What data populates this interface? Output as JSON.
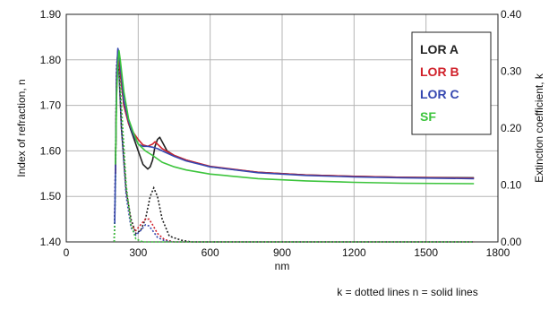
{
  "chart_data": {
    "type": "line",
    "xlabel": "nm",
    "ylabel_left": "Index of refraction, n",
    "ylabel_right": "Extinction coefficient, k",
    "xlim": [
      0,
      1800
    ],
    "ylim_left": [
      1.4,
      1.9
    ],
    "ylim_right": [
      0.0,
      0.4
    ],
    "x_ticks": [
      "0",
      "300",
      "600",
      "900",
      "1200",
      "1500",
      "1800"
    ],
    "y_left_ticks": [
      "1.40",
      "1.50",
      "1.60",
      "1.70",
      "1.80",
      "1.90"
    ],
    "y_right_ticks": [
      "0.00",
      "0.10",
      "0.20",
      "0.30",
      "0.40"
    ],
    "grid": true,
    "legend_position": "top-right",
    "footnote": "k = dotted lines  n = solid lines",
    "series": [
      {
        "name": "LOR A",
        "color": "#222222",
        "n": [
          [
            205,
            1.55
          ],
          [
            210,
            1.75
          ],
          [
            215,
            1.81
          ],
          [
            220,
            1.8
          ],
          [
            240,
            1.7
          ],
          [
            260,
            1.66
          ],
          [
            280,
            1.63
          ],
          [
            300,
            1.6
          ],
          [
            320,
            1.57
          ],
          [
            340,
            1.56
          ],
          [
            350,
            1.565
          ],
          [
            360,
            1.58
          ],
          [
            370,
            1.61
          ],
          [
            380,
            1.625
          ],
          [
            390,
            1.63
          ],
          [
            400,
            1.62
          ],
          [
            420,
            1.6
          ],
          [
            450,
            1.59
          ],
          [
            500,
            1.58
          ],
          [
            600,
            1.565
          ],
          [
            800,
            1.553
          ],
          [
            1000,
            1.547
          ],
          [
            1200,
            1.544
          ],
          [
            1400,
            1.542
          ],
          [
            1700,
            1.541
          ]
        ],
        "k": [
          [
            200,
            0.0
          ],
          [
            205,
            0.12
          ],
          [
            210,
            0.3
          ],
          [
            215,
            0.325
          ],
          [
            220,
            0.3
          ],
          [
            230,
            0.2
          ],
          [
            250,
            0.09
          ],
          [
            270,
            0.04
          ],
          [
            290,
            0.015
          ],
          [
            310,
            0.02
          ],
          [
            330,
            0.04
          ],
          [
            350,
            0.08
          ],
          [
            365,
            0.095
          ],
          [
            380,
            0.08
          ],
          [
            400,
            0.04
          ],
          [
            430,
            0.01
          ],
          [
            480,
            0.003
          ],
          [
            520,
            0.0
          ],
          [
            1700,
            0.0
          ]
        ]
      },
      {
        "name": "LOR B",
        "color": "#d0202a",
        "n": [
          [
            205,
            1.55
          ],
          [
            210,
            1.77
          ],
          [
            215,
            1.82
          ],
          [
            220,
            1.8
          ],
          [
            240,
            1.7
          ],
          [
            260,
            1.66
          ],
          [
            280,
            1.64
          ],
          [
            300,
            1.625
          ],
          [
            320,
            1.613
          ],
          [
            340,
            1.61
          ],
          [
            360,
            1.615
          ],
          [
            370,
            1.62
          ],
          [
            380,
            1.615
          ],
          [
            400,
            1.605
          ],
          [
            450,
            1.59
          ],
          [
            500,
            1.58
          ],
          [
            600,
            1.566
          ],
          [
            800,
            1.553
          ],
          [
            1000,
            1.547
          ],
          [
            1200,
            1.544
          ],
          [
            1400,
            1.542
          ],
          [
            1700,
            1.54
          ]
        ],
        "k": [
          [
            200,
            0.0
          ],
          [
            205,
            0.13
          ],
          [
            210,
            0.31
          ],
          [
            215,
            0.33
          ],
          [
            220,
            0.3
          ],
          [
            230,
            0.2
          ],
          [
            250,
            0.09
          ],
          [
            270,
            0.03
          ],
          [
            290,
            0.02
          ],
          [
            310,
            0.03
          ],
          [
            330,
            0.04
          ],
          [
            345,
            0.04
          ],
          [
            360,
            0.03
          ],
          [
            380,
            0.015
          ],
          [
            410,
            0.004
          ],
          [
            450,
            0.0
          ],
          [
            1700,
            0.0
          ]
        ]
      },
      {
        "name": "LOR C",
        "color": "#3547b0",
        "n": [
          [
            202,
            1.44
          ],
          [
            205,
            1.55
          ],
          [
            210,
            1.77
          ],
          [
            215,
            1.825
          ],
          [
            220,
            1.815
          ],
          [
            240,
            1.71
          ],
          [
            260,
            1.665
          ],
          [
            280,
            1.635
          ],
          [
            300,
            1.615
          ],
          [
            320,
            1.61
          ],
          [
            340,
            1.61
          ],
          [
            360,
            1.608
          ],
          [
            380,
            1.605
          ],
          [
            400,
            1.6
          ],
          [
            450,
            1.588
          ],
          [
            500,
            1.578
          ],
          [
            600,
            1.565
          ],
          [
            800,
            1.552
          ],
          [
            1000,
            1.546
          ],
          [
            1200,
            1.543
          ],
          [
            1400,
            1.541
          ],
          [
            1700,
            1.539
          ]
        ],
        "k": [
          [
            200,
            0.0
          ],
          [
            205,
            0.14
          ],
          [
            210,
            0.31
          ],
          [
            215,
            0.33
          ],
          [
            220,
            0.3
          ],
          [
            230,
            0.2
          ],
          [
            250,
            0.08
          ],
          [
            270,
            0.025
          ],
          [
            290,
            0.012
          ],
          [
            310,
            0.02
          ],
          [
            330,
            0.03
          ],
          [
            345,
            0.028
          ],
          [
            360,
            0.02
          ],
          [
            380,
            0.008
          ],
          [
            410,
            0.002
          ],
          [
            450,
            0.0
          ],
          [
            1700,
            0.0
          ]
        ]
      },
      {
        "name": "SF",
        "color": "#3cc43c",
        "n": [
          [
            205,
            1.57
          ],
          [
            210,
            1.72
          ],
          [
            215,
            1.79
          ],
          [
            220,
            1.82
          ],
          [
            225,
            1.8
          ],
          [
            240,
            1.73
          ],
          [
            260,
            1.67
          ],
          [
            280,
            1.64
          ],
          [
            300,
            1.615
          ],
          [
            330,
            1.6
          ],
          [
            360,
            1.59
          ],
          [
            400,
            1.575
          ],
          [
            450,
            1.565
          ],
          [
            500,
            1.558
          ],
          [
            600,
            1.549
          ],
          [
            800,
            1.539
          ],
          [
            1000,
            1.534
          ],
          [
            1200,
            1.531
          ],
          [
            1400,
            1.529
          ],
          [
            1700,
            1.528
          ]
        ],
        "k": [
          [
            200,
            0.0
          ],
          [
            205,
            0.1
          ],
          [
            210,
            0.26
          ],
          [
            215,
            0.32
          ],
          [
            220,
            0.32
          ],
          [
            230,
            0.24
          ],
          [
            250,
            0.1
          ],
          [
            270,
            0.03
          ],
          [
            290,
            0.005
          ],
          [
            320,
            0.0
          ],
          [
            1700,
            0.0
          ]
        ]
      }
    ]
  }
}
